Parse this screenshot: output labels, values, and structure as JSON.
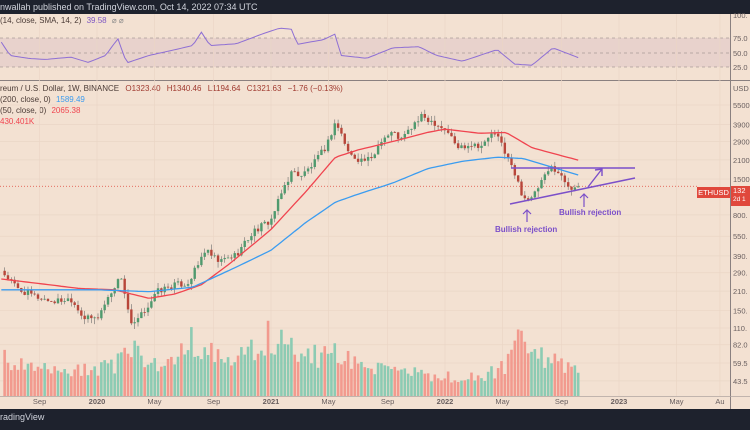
{
  "header": {
    "text": "nwallah published on TradingView.com, Oct 14, 2022 07:34 UTC"
  },
  "footer": {
    "text": "radingView"
  },
  "rsi": {
    "legend": "(14, close, SMA, 14, 2)",
    "value": "39.58",
    "icons": "⌀ ⌀",
    "levels": [
      75,
      50,
      25
    ],
    "ticks": [
      "100.",
      "75.0",
      "50.0",
      "25.0"
    ]
  },
  "main": {
    "symbol": "reum / U.S. Dollar, 1W, BINANCE",
    "open": "O1323.40",
    "high": "H1340.46",
    "low": "L1194.64",
    "close": "C1321.63",
    "change": "−1.76 (−0.13%)",
    "ma200": {
      "label": "(200, close, 0)",
      "value": "1589.49",
      "color": "#3b9cf0"
    },
    "ma50": {
      "label": "(50, close, 0)",
      "value": "2065.38",
      "color": "#f0444f"
    },
    "volume": "430.401K",
    "ticker_label": "ETHUSD",
    "price_label": "132",
    "countdown": "2d 1"
  },
  "colors": {
    "up": "#4f9a6e",
    "down": "#b8463a",
    "vol_up": "#8ccbb3",
    "vol_down": "#f29a8e",
    "annotation": "#7b4fc9"
  },
  "chart_data": {
    "type": "candlestick",
    "yscale": "log",
    "ylabel": "USD",
    "yticks": [
      5500,
      3900,
      2900,
      2100,
      1500,
      800,
      550,
      390,
      290,
      210,
      150,
      110,
      82.0,
      59.5,
      43.5
    ],
    "ytick_labels": [
      "5500",
      "3900",
      "2900",
      "2100",
      "1500",
      "800.",
      "550.",
      "390.",
      "290.",
      "210.",
      "150.",
      "110.",
      "82.0",
      "59.5",
      "43.5"
    ],
    "xticks": [
      {
        "t": 2019.67,
        "label": "Sep"
      },
      {
        "t": 2020.0,
        "label": "2020",
        "bold": true
      },
      {
        "t": 2020.33,
        "label": "May"
      },
      {
        "t": 2020.67,
        "label": "Sep"
      },
      {
        "t": 2021.0,
        "label": "2021",
        "bold": true
      },
      {
        "t": 2021.33,
        "label": "May"
      },
      {
        "t": 2021.67,
        "label": "Sep"
      },
      {
        "t": 2022.0,
        "label": "2022",
        "bold": true
      },
      {
        "t": 2022.33,
        "label": "May"
      },
      {
        "t": 2022.67,
        "label": "Sep"
      },
      {
        "t": 2023.0,
        "label": "2023",
        "bold": true
      },
      {
        "t": 2023.33,
        "label": "May"
      },
      {
        "t": 2023.58,
        "label": "Au"
      }
    ],
    "close_anchors": [
      [
        2019.45,
        300
      ],
      [
        2019.55,
        215
      ],
      [
        2019.65,
        190
      ],
      [
        2019.75,
        175
      ],
      [
        2019.85,
        185
      ],
      [
        2019.93,
        130
      ],
      [
        2020.0,
        130
      ],
      [
        2020.1,
        230
      ],
      [
        2020.14,
        270
      ],
      [
        2020.2,
        110
      ],
      [
        2020.25,
        135
      ],
      [
        2020.35,
        210
      ],
      [
        2020.45,
        235
      ],
      [
        2020.52,
        240
      ],
      [
        2020.58,
        330
      ],
      [
        2020.62,
        430
      ],
      [
        2020.7,
        350
      ],
      [
        2020.8,
        400
      ],
      [
        2020.9,
        600
      ],
      [
        2021.0,
        730
      ],
      [
        2021.08,
        1350
      ],
      [
        2021.12,
        1700
      ],
      [
        2021.18,
        1600
      ],
      [
        2021.25,
        2000
      ],
      [
        2021.32,
        2700
      ],
      [
        2021.37,
        4100
      ],
      [
        2021.4,
        3400
      ],
      [
        2021.45,
        2300
      ],
      [
        2021.52,
        2100
      ],
      [
        2021.58,
        2100
      ],
      [
        2021.63,
        3000
      ],
      [
        2021.7,
        3400
      ],
      [
        2021.75,
        3000
      ],
      [
        2021.82,
        3900
      ],
      [
        2021.87,
        4500
      ],
      [
        2021.95,
        4000
      ],
      [
        2022.02,
        3400
      ],
      [
        2022.07,
        2600
      ],
      [
        2022.15,
        2800
      ],
      [
        2022.22,
        2700
      ],
      [
        2022.27,
        3400
      ],
      [
        2022.32,
        2900
      ],
      [
        2022.38,
        1900
      ],
      [
        2022.45,
        1100
      ],
      [
        2022.5,
        1050
      ],
      [
        2022.55,
        1400
      ],
      [
        2022.62,
        1900
      ],
      [
        2022.67,
        1550
      ],
      [
        2022.72,
        1300
      ],
      [
        2022.78,
        1321.63
      ]
    ],
    "ma50_anchors": [
      [
        2019.45,
        260
      ],
      [
        2019.9,
        220
      ],
      [
        2020.1,
        215
      ],
      [
        2020.3,
        185
      ],
      [
        2020.45,
        200
      ],
      [
        2020.6,
        235
      ],
      [
        2020.75,
        330
      ],
      [
        2020.9,
        480
      ],
      [
        2021.0,
        620
      ],
      [
        2021.2,
        1200
      ],
      [
        2021.37,
        2200
      ],
      [
        2021.5,
        2500
      ],
      [
        2021.7,
        2900
      ],
      [
        2021.9,
        3400
      ],
      [
        2022.0,
        3600
      ],
      [
        2022.2,
        3350
      ],
      [
        2022.35,
        3400
      ],
      [
        2022.5,
        2600
      ],
      [
        2022.78,
        2065.38
      ]
    ],
    "ma200_anchors": [
      [
        2019.45,
        215
      ],
      [
        2020.0,
        215
      ],
      [
        2020.3,
        208
      ],
      [
        2020.55,
        225
      ],
      [
        2020.8,
        320
      ],
      [
        2021.0,
        430
      ],
      [
        2021.2,
        700
      ],
      [
        2021.37,
        1000
      ],
      [
        2021.5,
        1150
      ],
      [
        2021.7,
        1400
      ],
      [
        2021.9,
        1800
      ],
      [
        2022.1,
        2050
      ],
      [
        2022.3,
        2200
      ],
      [
        2022.45,
        2150
      ],
      [
        2022.78,
        1589.49
      ]
    ],
    "volume_anchors": [
      [
        2019.45,
        0.45
      ],
      [
        2019.6,
        0.3
      ],
      [
        2019.9,
        0.28
      ],
      [
        2020.15,
        0.4
      ],
      [
        2020.2,
        0.65
      ],
      [
        2020.3,
        0.35
      ],
      [
        2020.45,
        0.4
      ],
      [
        2020.52,
        0.75
      ],
      [
        2020.6,
        0.5
      ],
      [
        2020.8,
        0.4
      ],
      [
        2021.0,
        0.7
      ],
      [
        2021.1,
        0.55
      ],
      [
        2021.3,
        0.45
      ],
      [
        2021.4,
        0.5
      ],
      [
        2021.6,
        0.3
      ],
      [
        2021.9,
        0.25
      ],
      [
        2022.2,
        0.2
      ],
      [
        2022.38,
        0.4
      ],
      [
        2022.45,
        0.85
      ],
      [
        2022.5,
        0.5
      ],
      [
        2022.78,
        0.25
      ]
    ],
    "rsi_anchors": [
      [
        2019.45,
        68
      ],
      [
        2019.5,
        45
      ],
      [
        2019.6,
        40
      ],
      [
        2019.7,
        38
      ],
      [
        2019.85,
        42
      ],
      [
        2019.95,
        33
      ],
      [
        2020.05,
        45
      ],
      [
        2020.12,
        74
      ],
      [
        2020.17,
        32
      ],
      [
        2020.3,
        45
      ],
      [
        2020.45,
        55
      ],
      [
        2020.55,
        62
      ],
      [
        2020.6,
        85
      ],
      [
        2020.65,
        62
      ],
      [
        2020.8,
        65
      ],
      [
        2020.95,
        82
      ],
      [
        2021.05,
        92
      ],
      [
        2021.12,
        90
      ],
      [
        2021.15,
        64
      ],
      [
        2021.3,
        72
      ],
      [
        2021.37,
        82
      ],
      [
        2021.4,
        45
      ],
      [
        2021.55,
        40
      ],
      [
        2021.7,
        58
      ],
      [
        2021.85,
        60
      ],
      [
        2021.95,
        45
      ],
      [
        2022.1,
        35
      ],
      [
        2022.3,
        55
      ],
      [
        2022.4,
        30
      ],
      [
        2022.5,
        28
      ],
      [
        2022.62,
        58
      ],
      [
        2022.78,
        39.58
      ]
    ],
    "annotations": [
      {
        "text": "Bullish rejection",
        "at": "2022.45 low"
      },
      {
        "text": "Bullish rejection",
        "at": "2022.75 low"
      }
    ],
    "last_price": 1321.63
  }
}
